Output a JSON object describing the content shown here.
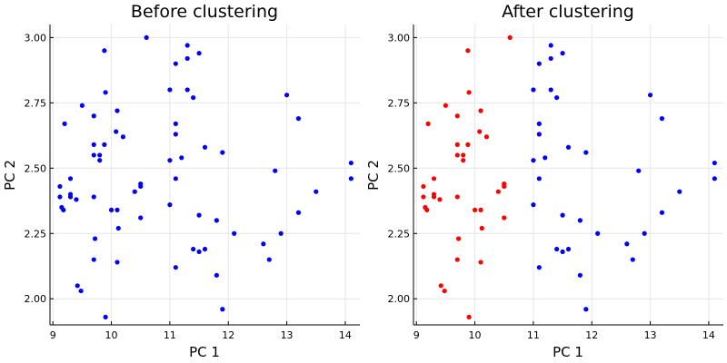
{
  "chart_data": [
    {
      "type": "scatter",
      "title": "Before clustering",
      "xlabel": "PC 1",
      "ylabel": "PC 2",
      "xlim": [
        8.95,
        14.25
      ],
      "ylim": [
        1.9,
        3.05
      ],
      "xticks": [
        9,
        10,
        11,
        12,
        13,
        14
      ],
      "yticks": [
        2.0,
        2.25,
        2.5,
        2.75,
        3.0
      ],
      "xtick_labels": [
        "9",
        "10",
        "11",
        "12",
        "13",
        "14"
      ],
      "ytick_labels": [
        "2.00",
        "2.25",
        "2.50",
        "2.75",
        "3.00"
      ],
      "grid": true,
      "legend": "none",
      "series": [
        {
          "color": "#0000ff",
          "points": [
            [
              9.12,
              2.43
            ],
            [
              9.12,
              2.39
            ],
            [
              9.15,
              2.35
            ],
            [
              9.18,
              2.34
            ],
            [
              9.2,
              2.67
            ],
            [
              9.3,
              2.46
            ],
            [
              9.3,
              2.4
            ],
            [
              9.3,
              2.39
            ],
            [
              9.4,
              2.38
            ],
            [
              9.42,
              2.05
            ],
            [
              9.48,
              2.03
            ],
            [
              9.5,
              2.74
            ],
            [
              9.7,
              2.7
            ],
            [
              9.7,
              2.59
            ],
            [
              9.7,
              2.55
            ],
            [
              9.7,
              2.39
            ],
            [
              9.72,
              2.23
            ],
            [
              9.7,
              2.15
            ],
            [
              9.8,
              2.55
            ],
            [
              9.8,
              2.53
            ],
            [
              9.88,
              2.95
            ],
            [
              9.9,
              2.79
            ],
            [
              9.88,
              2.59
            ],
            [
              9.9,
              1.93
            ],
            [
              10.0,
              2.34
            ],
            [
              10.08,
              2.64
            ],
            [
              10.1,
              2.72
            ],
            [
              10.1,
              2.34
            ],
            [
              10.12,
              2.27
            ],
            [
              10.1,
              2.14
            ],
            [
              10.2,
              2.62
            ],
            [
              10.4,
              2.41
            ],
            [
              10.5,
              2.44
            ],
            [
              10.5,
              2.43
            ],
            [
              10.5,
              2.31
            ],
            [
              10.6,
              3.0
            ],
            [
              11.0,
              2.8
            ],
            [
              11.0,
              2.53
            ],
            [
              11.0,
              2.36
            ],
            [
              11.1,
              2.9
            ],
            [
              11.1,
              2.67
            ],
            [
              11.1,
              2.63
            ],
            [
              11.1,
              2.46
            ],
            [
              11.1,
              2.12
            ],
            [
              11.2,
              2.54
            ],
            [
              11.3,
              2.97
            ],
            [
              11.3,
              2.92
            ],
            [
              11.3,
              2.8
            ],
            [
              11.4,
              2.77
            ],
            [
              11.4,
              2.19
            ],
            [
              11.5,
              2.94
            ],
            [
              11.5,
              2.32
            ],
            [
              11.5,
              2.18
            ],
            [
              11.6,
              2.58
            ],
            [
              11.6,
              2.19
            ],
            [
              11.8,
              2.3
            ],
            [
              11.8,
              2.09
            ],
            [
              11.9,
              2.56
            ],
            [
              11.9,
              1.96
            ],
            [
              12.1,
              2.25
            ],
            [
              12.6,
              2.21
            ],
            [
              12.7,
              2.15
            ],
            [
              12.8,
              2.49
            ],
            [
              12.9,
              2.25
            ],
            [
              13.0,
              2.78
            ],
            [
              13.2,
              2.69
            ],
            [
              13.2,
              2.33
            ],
            [
              13.5,
              2.41
            ],
            [
              14.1,
              2.52
            ],
            [
              14.1,
              2.46
            ]
          ]
        }
      ]
    },
    {
      "type": "scatter",
      "title": "After clustering",
      "xlabel": "PC 1",
      "ylabel": "PC 2",
      "xlim": [
        8.95,
        14.25
      ],
      "ylim": [
        1.9,
        3.05
      ],
      "xticks": [
        9,
        10,
        11,
        12,
        13,
        14
      ],
      "yticks": [
        2.0,
        2.25,
        2.5,
        2.75,
        3.0
      ],
      "xtick_labels": [
        "9",
        "10",
        "11",
        "12",
        "13",
        "14"
      ],
      "ytick_labels": [
        "2.00",
        "2.25",
        "2.50",
        "2.75",
        "3.00"
      ],
      "grid": true,
      "legend": "none",
      "series": [
        {
          "color": "#ff0000",
          "points": [
            [
              9.12,
              2.43
            ],
            [
              9.12,
              2.39
            ],
            [
              9.15,
              2.35
            ],
            [
              9.18,
              2.34
            ],
            [
              9.2,
              2.67
            ],
            [
              9.3,
              2.46
            ],
            [
              9.3,
              2.4
            ],
            [
              9.3,
              2.39
            ],
            [
              9.4,
              2.38
            ],
            [
              9.42,
              2.05
            ],
            [
              9.48,
              2.03
            ],
            [
              9.5,
              2.74
            ],
            [
              9.7,
              2.7
            ],
            [
              9.7,
              2.59
            ],
            [
              9.7,
              2.55
            ],
            [
              9.7,
              2.39
            ],
            [
              9.72,
              2.23
            ],
            [
              9.7,
              2.15
            ],
            [
              9.8,
              2.55
            ],
            [
              9.8,
              2.53
            ],
            [
              9.88,
              2.95
            ],
            [
              9.9,
              2.79
            ],
            [
              9.88,
              2.59
            ],
            [
              9.9,
              1.93
            ],
            [
              10.0,
              2.34
            ],
            [
              10.08,
              2.64
            ],
            [
              10.1,
              2.72
            ],
            [
              10.1,
              2.34
            ],
            [
              10.12,
              2.27
            ],
            [
              10.1,
              2.14
            ],
            [
              10.2,
              2.62
            ],
            [
              10.4,
              2.41
            ],
            [
              10.5,
              2.44
            ],
            [
              10.5,
              2.43
            ],
            [
              10.5,
              2.31
            ],
            [
              10.6,
              3.0
            ]
          ]
        },
        {
          "color": "#0000ff",
          "points": [
            [
              11.0,
              2.8
            ],
            [
              11.0,
              2.53
            ],
            [
              11.0,
              2.36
            ],
            [
              11.1,
              2.9
            ],
            [
              11.1,
              2.67
            ],
            [
              11.1,
              2.63
            ],
            [
              11.1,
              2.46
            ],
            [
              11.1,
              2.12
            ],
            [
              11.2,
              2.54
            ],
            [
              11.3,
              2.97
            ],
            [
              11.3,
              2.92
            ],
            [
              11.3,
              2.8
            ],
            [
              11.4,
              2.77
            ],
            [
              11.4,
              2.19
            ],
            [
              11.5,
              2.94
            ],
            [
              11.5,
              2.32
            ],
            [
              11.5,
              2.18
            ],
            [
              11.6,
              2.58
            ],
            [
              11.6,
              2.19
            ],
            [
              11.8,
              2.3
            ],
            [
              11.8,
              2.09
            ],
            [
              11.9,
              2.56
            ],
            [
              11.9,
              1.96
            ],
            [
              12.1,
              2.25
            ],
            [
              12.6,
              2.21
            ],
            [
              12.7,
              2.15
            ],
            [
              12.8,
              2.49
            ],
            [
              12.9,
              2.25
            ],
            [
              13.0,
              2.78
            ],
            [
              13.2,
              2.69
            ],
            [
              13.2,
              2.33
            ],
            [
              13.5,
              2.41
            ],
            [
              14.1,
              2.52
            ],
            [
              14.1,
              2.46
            ]
          ]
        }
      ]
    }
  ]
}
